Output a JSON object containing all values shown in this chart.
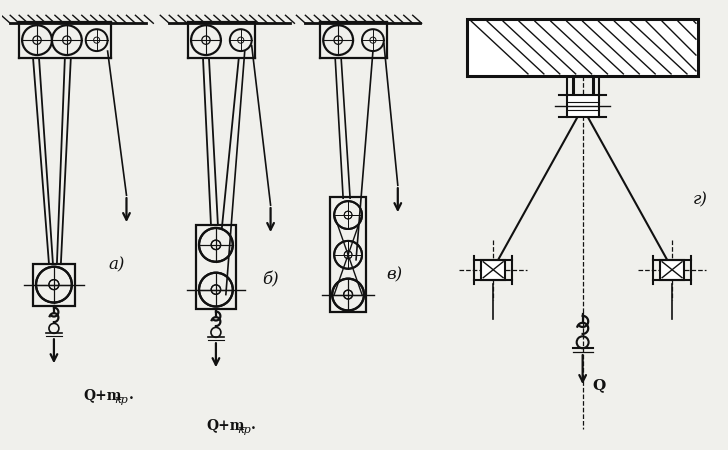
{
  "background_color": "#f0f0ec",
  "line_color": "#111111",
  "figsize": [
    7.28,
    4.5
  ],
  "dpi": 100,
  "labels": {
    "a": "а)",
    "b": "б)",
    "v": "в)",
    "g": "г)"
  }
}
